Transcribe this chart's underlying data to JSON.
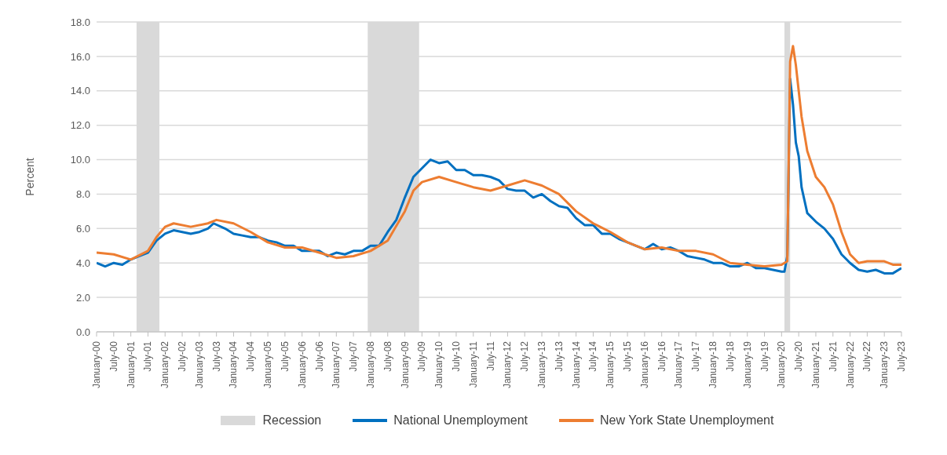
{
  "chart_data": {
    "type": "line",
    "ylabel": "Percent",
    "xlim": [
      "2000-01",
      "2023-07"
    ],
    "xticks": [
      {
        "value": "2000-01",
        "label": "January-00"
      },
      {
        "value": "2000-07",
        "label": "July-00"
      },
      {
        "value": "2001-01",
        "label": "January-01"
      },
      {
        "value": "2001-07",
        "label": "July-01"
      },
      {
        "value": "2002-01",
        "label": "January-02"
      },
      {
        "value": "2002-07",
        "label": "July-02"
      },
      {
        "value": "2003-01",
        "label": "January-03"
      },
      {
        "value": "2003-07",
        "label": "July-03"
      },
      {
        "value": "2004-01",
        "label": "January-04"
      },
      {
        "value": "2004-07",
        "label": "July-04"
      },
      {
        "value": "2005-01",
        "label": "January-05"
      },
      {
        "value": "2005-07",
        "label": "July-05"
      },
      {
        "value": "2006-01",
        "label": "January-06"
      },
      {
        "value": "2006-07",
        "label": "July-06"
      },
      {
        "value": "2007-01",
        "label": "January-07"
      },
      {
        "value": "2007-07",
        "label": "July-07"
      },
      {
        "value": "2008-01",
        "label": "January-08"
      },
      {
        "value": "2008-07",
        "label": "July-08"
      },
      {
        "value": "2009-01",
        "label": "January-09"
      },
      {
        "value": "2009-07",
        "label": "July-09"
      },
      {
        "value": "2010-01",
        "label": "January-10"
      },
      {
        "value": "2010-07",
        "label": "July-10"
      },
      {
        "value": "2011-01",
        "label": "January-11"
      },
      {
        "value": "2011-07",
        "label": "July-11"
      },
      {
        "value": "2012-01",
        "label": "January-12"
      },
      {
        "value": "2012-07",
        "label": "July-12"
      },
      {
        "value": "2013-01",
        "label": "January-13"
      },
      {
        "value": "2013-07",
        "label": "July-13"
      },
      {
        "value": "2014-01",
        "label": "January-14"
      },
      {
        "value": "2014-07",
        "label": "July-14"
      },
      {
        "value": "2015-01",
        "label": "January-15"
      },
      {
        "value": "2015-07",
        "label": "July-15"
      },
      {
        "value": "2016-01",
        "label": "January-16"
      },
      {
        "value": "2016-07",
        "label": "July-16"
      },
      {
        "value": "2017-01",
        "label": "January-17"
      },
      {
        "value": "2017-07",
        "label": "July-17"
      },
      {
        "value": "2018-01",
        "label": "January-18"
      },
      {
        "value": "2018-07",
        "label": "July-18"
      },
      {
        "value": "2019-01",
        "label": "January-19"
      },
      {
        "value": "2019-07",
        "label": "July-19"
      },
      {
        "value": "2020-01",
        "label": "January-20"
      },
      {
        "value": "2020-07",
        "label": "July-20"
      },
      {
        "value": "2021-01",
        "label": "January-21"
      },
      {
        "value": "2021-07",
        "label": "July-21"
      },
      {
        "value": "2022-01",
        "label": "January-22"
      },
      {
        "value": "2022-07",
        "label": "July-22"
      },
      {
        "value": "2023-01",
        "label": "January-23"
      },
      {
        "value": "2023-07",
        "label": "July-23"
      }
    ],
    "ylim": [
      0,
      18
    ],
    "yticks": [
      {
        "value": 0,
        "label": "0.0"
      },
      {
        "value": 2,
        "label": "2.0"
      },
      {
        "value": 4,
        "label": "4.0"
      },
      {
        "value": 6,
        "label": "6.0"
      },
      {
        "value": 8,
        "label": "8.0"
      },
      {
        "value": 10,
        "label": "10.0"
      },
      {
        "value": 12,
        "label": "12.0"
      },
      {
        "value": 14,
        "label": "14.0"
      },
      {
        "value": 16,
        "label": "16.0"
      },
      {
        "value": 18,
        "label": "18.0"
      }
    ],
    "grid": "y",
    "legend": "bottom",
    "marker": "none",
    "line_style": "solid",
    "bands": [
      {
        "axis": "x",
        "from": "2001-03",
        "to": "2001-11",
        "label": "Recession",
        "color": "#d9d9d9"
      },
      {
        "axis": "x",
        "from": "2007-12",
        "to": "2009-06",
        "color": "#d9d9d9"
      },
      {
        "axis": "x",
        "from": "2020-02",
        "to": "2020-04",
        "color": "#d9d9d9"
      }
    ],
    "series": [
      {
        "name": "National Unemployment",
        "color": "#0070c0",
        "x": [
          "2000-01",
          "2000-04",
          "2000-07",
          "2000-10",
          "2001-01",
          "2001-04",
          "2001-07",
          "2001-10",
          "2002-01",
          "2002-04",
          "2002-07",
          "2002-10",
          "2003-01",
          "2003-04",
          "2003-06",
          "2003-10",
          "2004-01",
          "2004-04",
          "2004-07",
          "2004-10",
          "2005-01",
          "2005-04",
          "2005-07",
          "2005-10",
          "2006-01",
          "2006-04",
          "2006-07",
          "2006-10",
          "2007-01",
          "2007-04",
          "2007-07",
          "2007-10",
          "2008-01",
          "2008-04",
          "2008-07",
          "2008-10",
          "2009-01",
          "2009-04",
          "2009-07",
          "2009-10",
          "2010-01",
          "2010-04",
          "2010-07",
          "2010-10",
          "2011-01",
          "2011-04",
          "2011-07",
          "2011-10",
          "2012-01",
          "2012-04",
          "2012-07",
          "2012-10",
          "2013-01",
          "2013-04",
          "2013-07",
          "2013-10",
          "2014-01",
          "2014-04",
          "2014-07",
          "2014-10",
          "2015-01",
          "2015-04",
          "2015-07",
          "2015-10",
          "2016-01",
          "2016-04",
          "2016-07",
          "2016-10",
          "2017-01",
          "2017-04",
          "2017-07",
          "2017-10",
          "2018-01",
          "2018-04",
          "2018-07",
          "2018-10",
          "2019-01",
          "2019-04",
          "2019-07",
          "2019-10",
          "2020-01",
          "2020-02",
          "2020-03",
          "2020-04",
          "2020-05",
          "2020-06",
          "2020-07",
          "2020-08",
          "2020-10",
          "2021-01",
          "2021-04",
          "2021-07",
          "2021-10",
          "2022-01",
          "2022-04",
          "2022-07",
          "2022-10",
          "2023-01",
          "2023-04",
          "2023-07"
        ],
        "values": [
          4.0,
          3.8,
          4.0,
          3.9,
          4.2,
          4.4,
          4.6,
          5.3,
          5.7,
          5.9,
          5.8,
          5.7,
          5.8,
          6.0,
          6.3,
          6.0,
          5.7,
          5.6,
          5.5,
          5.5,
          5.3,
          5.2,
          5.0,
          5.0,
          4.7,
          4.7,
          4.7,
          4.4,
          4.6,
          4.5,
          4.7,
          4.7,
          5.0,
          5.0,
          5.8,
          6.5,
          7.8,
          9.0,
          9.5,
          10.0,
          9.8,
          9.9,
          9.4,
          9.4,
          9.1,
          9.1,
          9.0,
          8.8,
          8.3,
          8.2,
          8.2,
          7.8,
          8.0,
          7.6,
          7.3,
          7.2,
          6.6,
          6.2,
          6.2,
          5.7,
          5.7,
          5.4,
          5.2,
          5.0,
          4.8,
          5.1,
          4.8,
          4.9,
          4.7,
          4.4,
          4.3,
          4.2,
          4.0,
          4.0,
          3.8,
          3.8,
          4.0,
          3.7,
          3.7,
          3.6,
          3.5,
          3.5,
          4.4,
          14.7,
          13.2,
          11.0,
          10.2,
          8.4,
          6.9,
          6.4,
          6.0,
          5.4,
          4.5,
          4.0,
          3.6,
          3.5,
          3.6,
          3.4,
          3.4,
          3.7
        ]
      },
      {
        "name": "New York State Unemployment",
        "color": "#ed7d31",
        "x": [
          "2000-01",
          "2000-07",
          "2001-01",
          "2001-07",
          "2001-10",
          "2002-01",
          "2002-04",
          "2002-10",
          "2003-04",
          "2003-07",
          "2004-01",
          "2004-07",
          "2005-01",
          "2005-07",
          "2006-01",
          "2006-07",
          "2007-01",
          "2007-07",
          "2008-01",
          "2008-07",
          "2009-01",
          "2009-04",
          "2009-07",
          "2010-01",
          "2010-07",
          "2011-01",
          "2011-07",
          "2012-01",
          "2012-07",
          "2013-01",
          "2013-07",
          "2014-01",
          "2014-07",
          "2015-01",
          "2015-07",
          "2016-01",
          "2016-07",
          "2017-01",
          "2017-07",
          "2018-01",
          "2018-07",
          "2019-01",
          "2019-07",
          "2020-01",
          "2020-03",
          "2020-04",
          "2020-05",
          "2020-06",
          "2020-08",
          "2020-10",
          "2021-01",
          "2021-04",
          "2021-07",
          "2021-10",
          "2022-01",
          "2022-04",
          "2022-07",
          "2022-10",
          "2023-01",
          "2023-04",
          "2023-07"
        ],
        "values": [
          4.6,
          4.5,
          4.2,
          4.7,
          5.5,
          6.1,
          6.3,
          6.1,
          6.3,
          6.5,
          6.3,
          5.8,
          5.2,
          4.9,
          4.9,
          4.6,
          4.3,
          4.4,
          4.7,
          5.3,
          7.0,
          8.2,
          8.7,
          9.0,
          8.7,
          8.4,
          8.2,
          8.5,
          8.8,
          8.5,
          8.0,
          7.0,
          6.3,
          5.8,
          5.2,
          4.8,
          4.9,
          4.7,
          4.7,
          4.5,
          4.0,
          3.9,
          3.8,
          3.9,
          4.1,
          15.7,
          16.6,
          15.5,
          12.5,
          10.5,
          9.0,
          8.4,
          7.4,
          5.8,
          4.5,
          4.0,
          4.1,
          4.1,
          4.1,
          3.9,
          3.9
        ]
      }
    ]
  }
}
